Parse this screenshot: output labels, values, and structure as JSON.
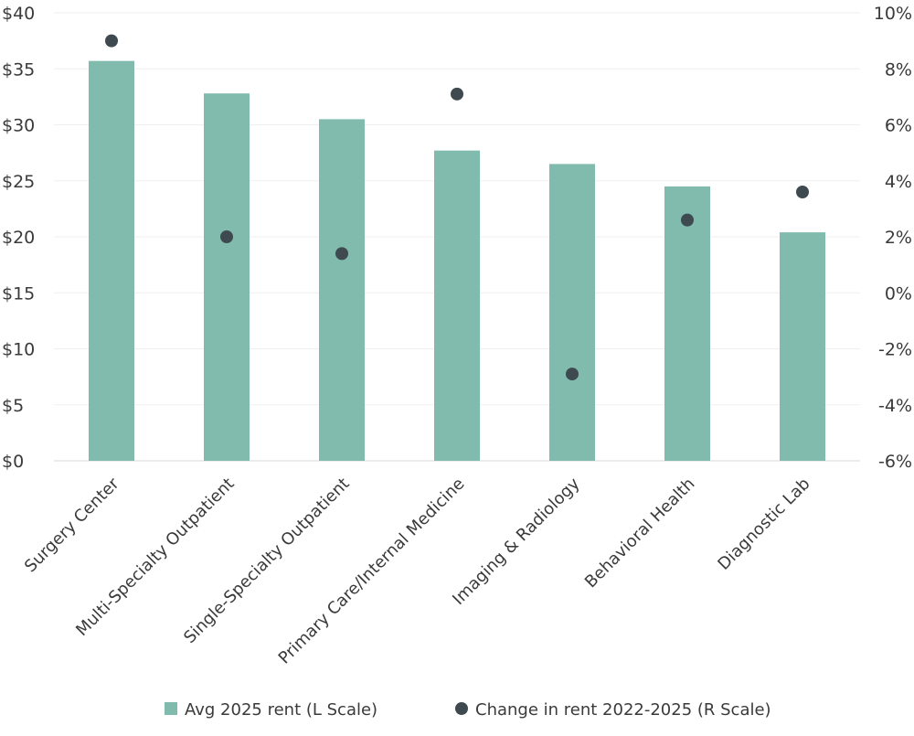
{
  "chart_data": {
    "type": "bar",
    "title": "",
    "categories": [
      "Surgery Center",
      "Multi-Specialty Outpatient",
      "Single-Specialty Outpatient",
      "Primary Care/Internal Medicine",
      "Imaging & Radiology",
      "Behavioral Health",
      "Diagnostic Lab"
    ],
    "series": [
      {
        "name": "Avg 2025 rent (L Scale)",
        "type": "bar",
        "axis": "left",
        "color": "#80bbad",
        "values": [
          35.7,
          32.8,
          30.5,
          27.7,
          26.5,
          24.5,
          20.4
        ]
      },
      {
        "name": "Change in rent 2022-2025 (R Scale)",
        "type": "scatter",
        "axis": "right",
        "color": "#3e4a4f",
        "values": [
          9.0,
          2.0,
          1.4,
          7.1,
          -2.9,
          2.6,
          3.6
        ]
      }
    ],
    "left_axis": {
      "range": [
        0,
        40
      ],
      "ticks": [
        0,
        5,
        10,
        15,
        20,
        25,
        30,
        35,
        40
      ],
      "tick_labels": [
        "$0",
        "$5",
        "$10",
        "$15",
        "$20",
        "$25",
        "$30",
        "$35",
        "$40"
      ]
    },
    "right_axis": {
      "range": [
        -6,
        10
      ],
      "ticks": [
        -6,
        -4,
        -2,
        0,
        2,
        4,
        6,
        8,
        10
      ],
      "tick_labels": [
        "-6%",
        "-4%",
        "-2%",
        "0%",
        "2%",
        "4%",
        "6%",
        "8%",
        "10%"
      ]
    },
    "grid": true,
    "legend_position": "bottom"
  }
}
